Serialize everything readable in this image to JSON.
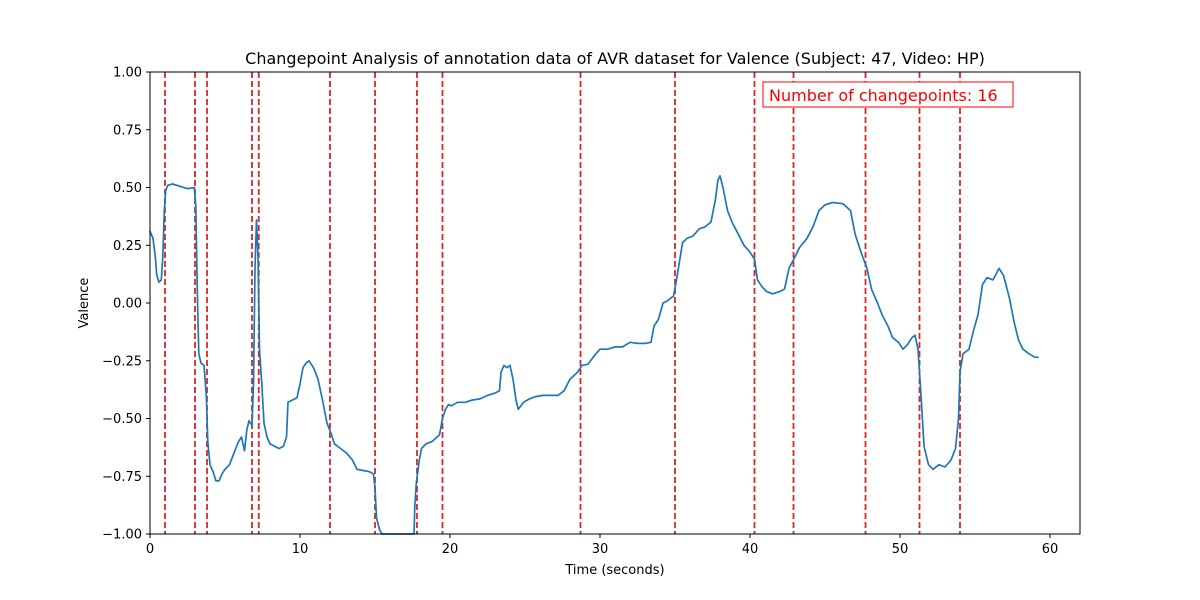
{
  "chart_data": {
    "type": "line",
    "title": "Changepoint Analysis of annotation data of AVR dataset for Valence (Subject: 47, Video: HP)",
    "xlabel": "Time (seconds)",
    "ylabel": "Valence",
    "xlim": [
      0,
      62
    ],
    "ylim": [
      -1.0,
      1.0
    ],
    "x_ticks": [
      0,
      10,
      20,
      30,
      40,
      50,
      60
    ],
    "x_tick_labels": [
      "0",
      "10",
      "20",
      "30",
      "40",
      "50",
      "60"
    ],
    "y_ticks": [
      1.0,
      0.75,
      0.5,
      0.25,
      0.0,
      -0.25,
      -0.5,
      -0.75,
      -1.0
    ],
    "y_tick_labels": [
      "1.00",
      "0.75",
      "0.50",
      "0.25",
      "0.00",
      "−0.25",
      "−0.50",
      "−0.75",
      "−1.00"
    ],
    "grid": false,
    "series": [
      {
        "color": "#1f77b4",
        "points": [
          [
            0.0,
            0.31
          ],
          [
            0.2,
            0.28
          ],
          [
            0.35,
            0.2
          ],
          [
            0.45,
            0.12
          ],
          [
            0.6,
            0.09
          ],
          [
            0.75,
            0.1
          ],
          [
            0.85,
            0.2
          ],
          [
            0.95,
            0.4
          ],
          [
            1.05,
            0.49
          ],
          [
            1.2,
            0.51
          ],
          [
            1.5,
            0.515
          ],
          [
            2.0,
            0.505
          ],
          [
            2.5,
            0.495
          ],
          [
            2.95,
            0.5
          ],
          [
            3.05,
            0.42
          ],
          [
            3.15,
            0.05
          ],
          [
            3.25,
            -0.22
          ],
          [
            3.4,
            -0.26
          ],
          [
            3.6,
            -0.27
          ],
          [
            3.75,
            -0.4
          ],
          [
            3.85,
            -0.6
          ],
          [
            4.0,
            -0.7
          ],
          [
            4.2,
            -0.73
          ],
          [
            4.4,
            -0.77
          ],
          [
            4.6,
            -0.77
          ],
          [
            4.8,
            -0.74
          ],
          [
            5.0,
            -0.72
          ],
          [
            5.3,
            -0.7
          ],
          [
            5.6,
            -0.65
          ],
          [
            5.9,
            -0.6
          ],
          [
            6.1,
            -0.58
          ],
          [
            6.3,
            -0.64
          ],
          [
            6.45,
            -0.55
          ],
          [
            6.6,
            -0.51
          ],
          [
            6.8,
            -0.53
          ],
          [
            6.9,
            -0.35
          ],
          [
            7.0,
            0.15
          ],
          [
            7.1,
            0.36
          ],
          [
            7.2,
            0.2
          ],
          [
            7.3,
            -0.2
          ],
          [
            7.45,
            -0.35
          ],
          [
            7.6,
            -0.52
          ],
          [
            7.8,
            -0.58
          ],
          [
            8.0,
            -0.61
          ],
          [
            8.3,
            -0.62
          ],
          [
            8.6,
            -0.63
          ],
          [
            8.9,
            -0.62
          ],
          [
            9.1,
            -0.58
          ],
          [
            9.2,
            -0.43
          ],
          [
            9.5,
            -0.42
          ],
          [
            9.8,
            -0.41
          ],
          [
            10.0,
            -0.35
          ],
          [
            10.2,
            -0.28
          ],
          [
            10.4,
            -0.26
          ],
          [
            10.6,
            -0.25
          ],
          [
            10.9,
            -0.28
          ],
          [
            11.2,
            -0.33
          ],
          [
            11.5,
            -0.42
          ],
          [
            11.8,
            -0.52
          ],
          [
            12.1,
            -0.57
          ],
          [
            12.3,
            -0.61
          ],
          [
            12.7,
            -0.63
          ],
          [
            13.1,
            -0.65
          ],
          [
            13.5,
            -0.68
          ],
          [
            13.8,
            -0.72
          ],
          [
            14.2,
            -0.725
          ],
          [
            14.6,
            -0.73
          ],
          [
            14.9,
            -0.74
          ],
          [
            15.0,
            -0.8
          ],
          [
            15.1,
            -0.93
          ],
          [
            15.3,
            -0.98
          ],
          [
            15.45,
            -1.0
          ],
          [
            16.0,
            -1.0
          ],
          [
            16.5,
            -1.0
          ],
          [
            17.0,
            -1.0
          ],
          [
            17.6,
            -1.0
          ],
          [
            17.65,
            -0.88
          ],
          [
            17.75,
            -0.78
          ],
          [
            17.95,
            -0.68
          ],
          [
            18.1,
            -0.63
          ],
          [
            18.4,
            -0.61
          ],
          [
            18.8,
            -0.6
          ],
          [
            19.3,
            -0.57
          ],
          [
            19.5,
            -0.5
          ],
          [
            19.7,
            -0.46
          ],
          [
            19.9,
            -0.44
          ],
          [
            20.1,
            -0.445
          ],
          [
            20.5,
            -0.43
          ],
          [
            21.0,
            -0.43
          ],
          [
            21.5,
            -0.42
          ],
          [
            22.0,
            -0.415
          ],
          [
            22.5,
            -0.4
          ],
          [
            23.0,
            -0.39
          ],
          [
            23.3,
            -0.38
          ],
          [
            23.4,
            -0.3
          ],
          [
            23.6,
            -0.27
          ],
          [
            23.8,
            -0.28
          ],
          [
            24.0,
            -0.27
          ],
          [
            24.2,
            -0.33
          ],
          [
            24.4,
            -0.42
          ],
          [
            24.55,
            -0.46
          ],
          [
            24.9,
            -0.43
          ],
          [
            25.3,
            -0.415
          ],
          [
            25.7,
            -0.405
          ],
          [
            26.2,
            -0.4
          ],
          [
            26.7,
            -0.4
          ],
          [
            27.2,
            -0.4
          ],
          [
            27.6,
            -0.38
          ],
          [
            28.0,
            -0.33
          ],
          [
            28.5,
            -0.3
          ],
          [
            28.8,
            -0.27
          ],
          [
            29.2,
            -0.265
          ],
          [
            29.6,
            -0.23
          ],
          [
            30.0,
            -0.2
          ],
          [
            30.5,
            -0.2
          ],
          [
            31.0,
            -0.19
          ],
          [
            31.5,
            -0.19
          ],
          [
            32.0,
            -0.17
          ],
          [
            32.5,
            -0.175
          ],
          [
            33.0,
            -0.175
          ],
          [
            33.4,
            -0.17
          ],
          [
            33.6,
            -0.1
          ],
          [
            33.9,
            -0.07
          ],
          [
            34.2,
            0.0
          ],
          [
            34.5,
            0.01
          ],
          [
            34.9,
            0.03
          ],
          [
            35.1,
            0.1
          ],
          [
            35.3,
            0.18
          ],
          [
            35.5,
            0.26
          ],
          [
            35.8,
            0.28
          ],
          [
            36.2,
            0.29
          ],
          [
            36.6,
            0.32
          ],
          [
            37.0,
            0.33
          ],
          [
            37.4,
            0.35
          ],
          [
            37.7,
            0.45
          ],
          [
            37.85,
            0.53
          ],
          [
            38.0,
            0.55
          ],
          [
            38.2,
            0.5
          ],
          [
            38.5,
            0.4
          ],
          [
            38.8,
            0.35
          ],
          [
            39.2,
            0.3
          ],
          [
            39.6,
            0.25
          ],
          [
            40.0,
            0.22
          ],
          [
            40.3,
            0.19
          ],
          [
            40.5,
            0.1
          ],
          [
            40.8,
            0.07
          ],
          [
            41.1,
            0.05
          ],
          [
            41.5,
            0.04
          ],
          [
            42.0,
            0.05
          ],
          [
            42.3,
            0.06
          ],
          [
            42.6,
            0.15
          ],
          [
            43.0,
            0.2
          ],
          [
            43.3,
            0.24
          ],
          [
            43.8,
            0.28
          ],
          [
            44.2,
            0.33
          ],
          [
            44.6,
            0.4
          ],
          [
            45.0,
            0.425
          ],
          [
            45.5,
            0.435
          ],
          [
            46.2,
            0.43
          ],
          [
            46.7,
            0.4
          ],
          [
            47.0,
            0.3
          ],
          [
            47.4,
            0.22
          ],
          [
            47.8,
            0.15
          ],
          [
            48.1,
            0.06
          ],
          [
            48.5,
            0.0
          ],
          [
            48.8,
            -0.05
          ],
          [
            49.2,
            -0.1
          ],
          [
            49.5,
            -0.15
          ],
          [
            49.9,
            -0.17
          ],
          [
            50.2,
            -0.2
          ],
          [
            50.5,
            -0.18
          ],
          [
            50.8,
            -0.15
          ],
          [
            51.0,
            -0.14
          ],
          [
            51.2,
            -0.2
          ],
          [
            51.4,
            -0.4
          ],
          [
            51.6,
            -0.62
          ],
          [
            51.9,
            -0.7
          ],
          [
            52.2,
            -0.72
          ],
          [
            52.6,
            -0.7
          ],
          [
            53.0,
            -0.71
          ],
          [
            53.4,
            -0.68
          ],
          [
            53.7,
            -0.63
          ],
          [
            53.9,
            -0.5
          ],
          [
            54.0,
            -0.3
          ],
          [
            54.2,
            -0.22
          ],
          [
            54.6,
            -0.2
          ],
          [
            54.9,
            -0.12
          ],
          [
            55.2,
            -0.05
          ],
          [
            55.5,
            0.08
          ],
          [
            55.8,
            0.11
          ],
          [
            56.2,
            0.1
          ],
          [
            56.6,
            0.15
          ],
          [
            56.9,
            0.12
          ],
          [
            57.3,
            0.02
          ],
          [
            57.6,
            -0.08
          ],
          [
            57.9,
            -0.16
          ],
          [
            58.2,
            -0.2
          ],
          [
            58.6,
            -0.22
          ],
          [
            59.0,
            -0.235
          ],
          [
            59.2,
            -0.235
          ]
        ]
      }
    ],
    "changepoints": [
      1.0,
      3.0,
      3.8,
      6.8,
      7.25,
      12.0,
      15.0,
      17.8,
      19.5,
      28.7,
      35.0,
      40.3,
      42.9,
      47.7,
      51.3,
      54.0
    ],
    "changepoint_color": "#d62728",
    "annotation": {
      "text": "Number of changepoints: 16",
      "color": "#ff0000",
      "placement": "top-right"
    }
  }
}
